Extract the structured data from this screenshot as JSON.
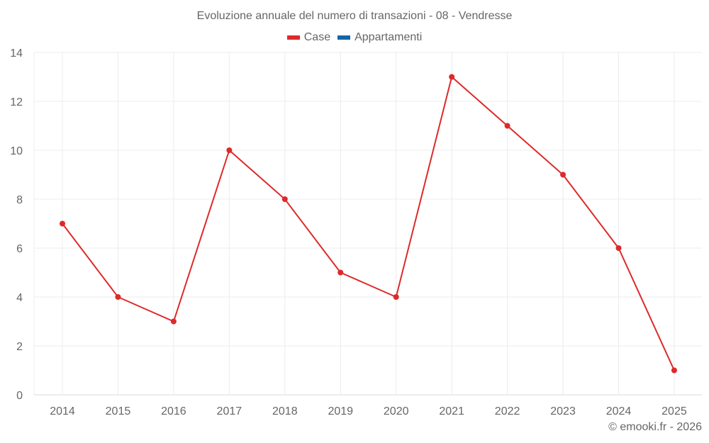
{
  "chart": {
    "title": "Evoluzione annuale del numero di transazioni - 08 - Vendresse",
    "credit": "© emooki.fr - 2026",
    "legend": [
      {
        "label": "Case",
        "color": "#dd2a2a"
      },
      {
        "label": "Appartamenti",
        "color": "#1565a6"
      }
    ]
  },
  "chart_data": {
    "type": "line",
    "title": "Evoluzione annuale del numero di transazioni - 08 - Vendresse",
    "xlabel": "",
    "ylabel": "",
    "categories": [
      "2014",
      "2015",
      "2016",
      "2017",
      "2018",
      "2019",
      "2020",
      "2021",
      "2022",
      "2023",
      "2024",
      "2025"
    ],
    "series": [
      {
        "name": "Case",
        "color": "#dd2a2a",
        "values": [
          7,
          4,
          3,
          10,
          8,
          5,
          4,
          13,
          11,
          9,
          6,
          1
        ]
      },
      {
        "name": "Appartamenti",
        "color": "#1565a6",
        "values": []
      }
    ],
    "yticks": [
      0,
      2,
      4,
      6,
      8,
      10,
      12,
      14
    ],
    "ylim": [
      0,
      14
    ],
    "grid": true,
    "legend_position": "top"
  }
}
